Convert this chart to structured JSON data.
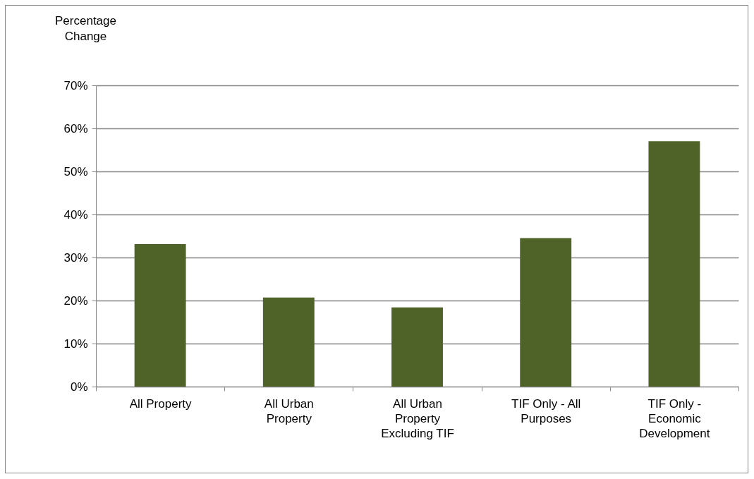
{
  "chart_data": {
    "type": "bar",
    "ylabel": "Percentage Change",
    "categories": [
      "All Property",
      "All Urban Property",
      "All Urban Property Excluding TIF",
      "TIF Only - All Purposes",
      "TIF Only - Economic Development"
    ],
    "values": [
      33.1,
      20.7,
      18.4,
      34.5,
      57.0
    ],
    "color": "#4f6228",
    "ylim": [
      0,
      70
    ],
    "yticks": [
      {
        "value": 0,
        "label": "0%"
      },
      {
        "value": 10,
        "label": "10%"
      },
      {
        "value": 20,
        "label": "20%"
      },
      {
        "value": 30,
        "label": "30%"
      },
      {
        "value": 40,
        "label": "40%"
      },
      {
        "value": 50,
        "label": "50%"
      },
      {
        "value": 60,
        "label": "60%"
      },
      {
        "value": 70,
        "label": "70%"
      }
    ],
    "grid": "y"
  }
}
